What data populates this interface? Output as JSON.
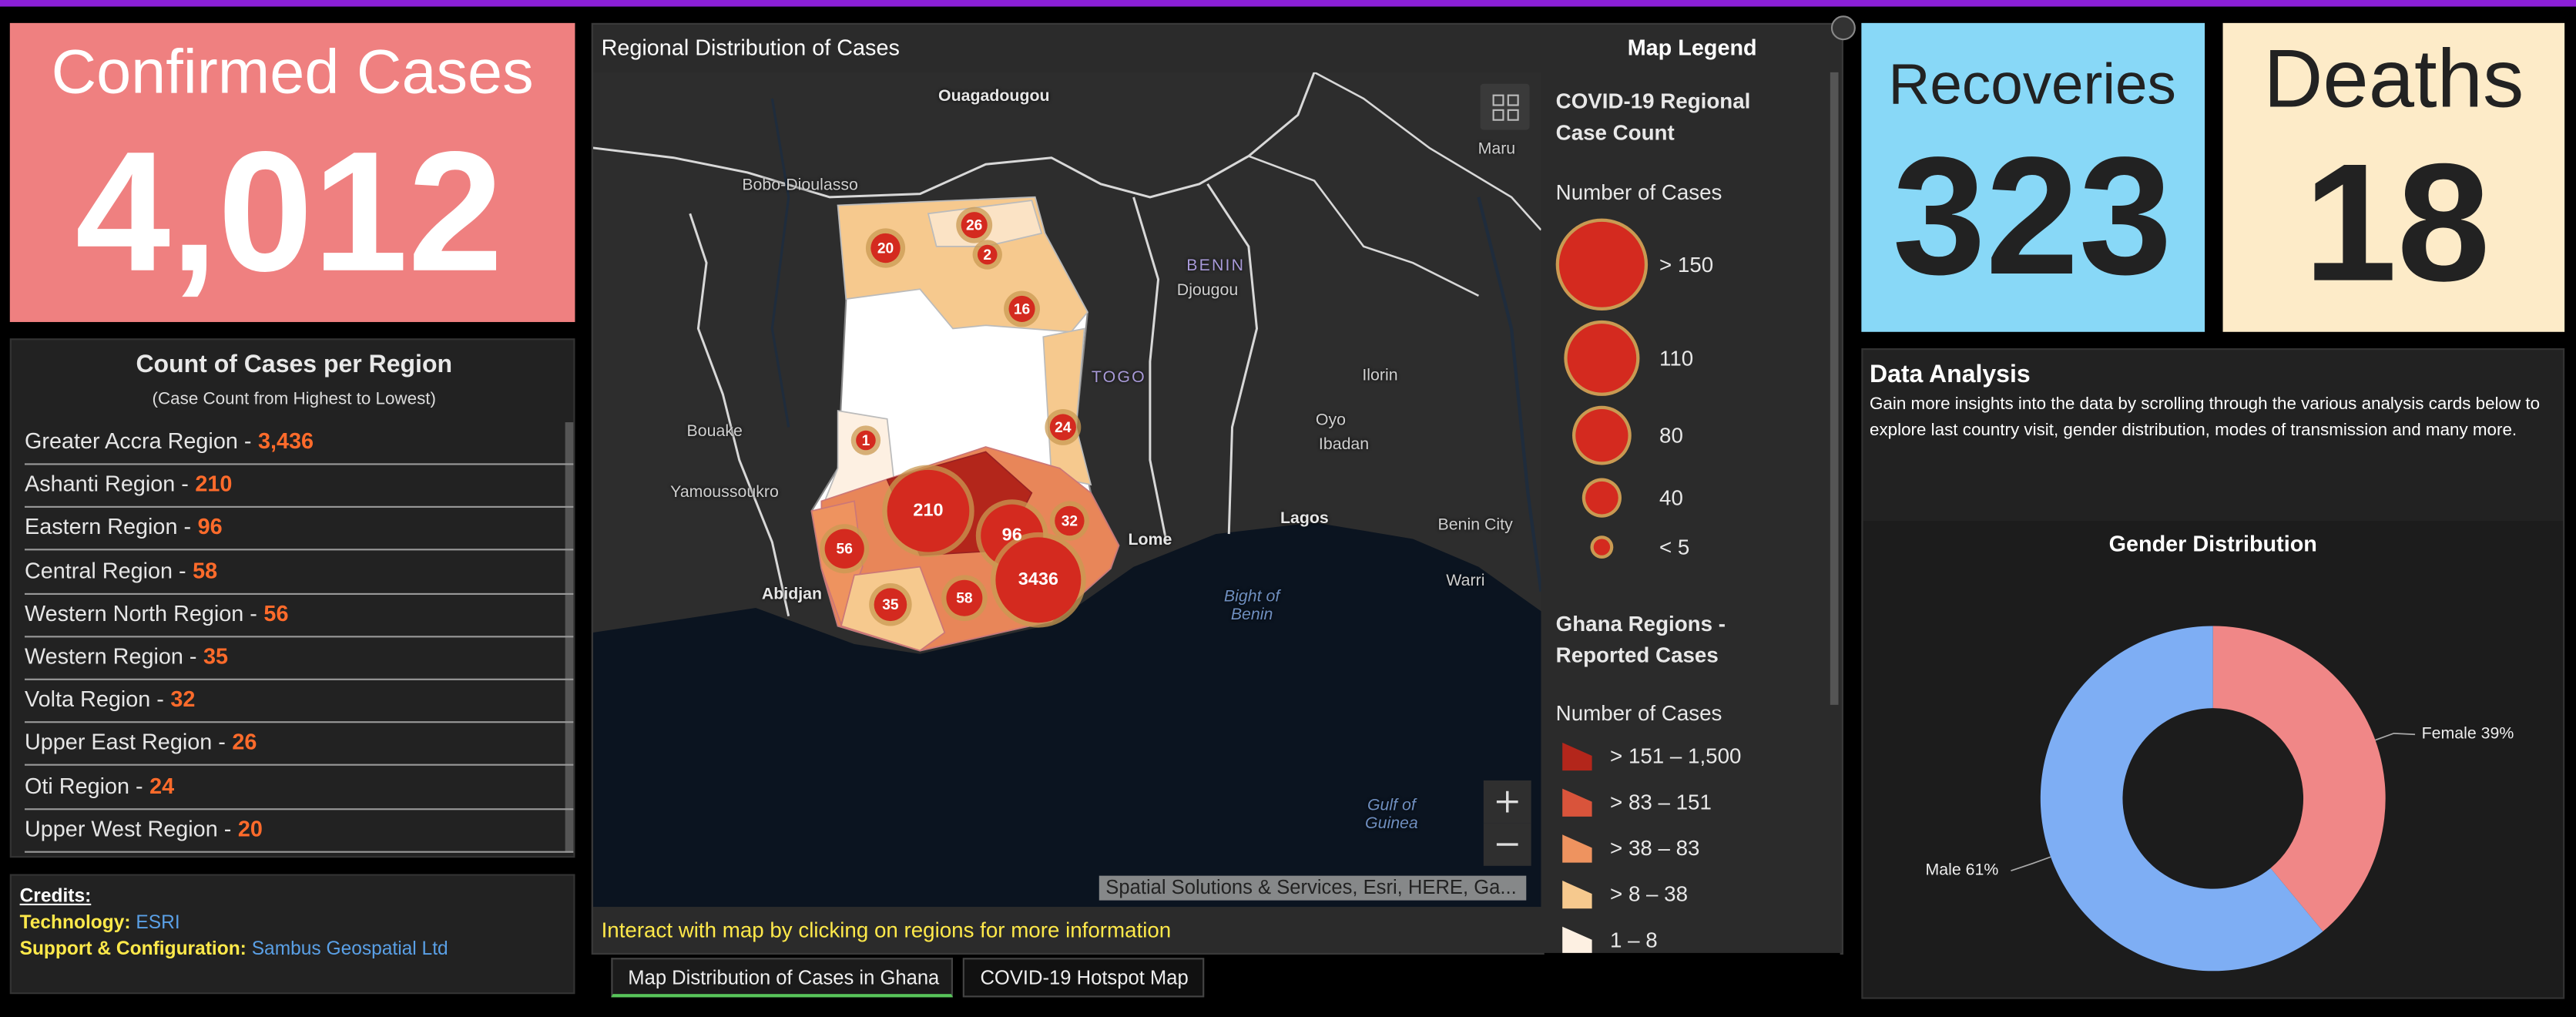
{
  "confirmed": {
    "title": "Confirmed Cases",
    "value": "4,012"
  },
  "regions_panel": {
    "title": "Count of Cases per Region",
    "subtitle": "(Case Count from Highest to Lowest)",
    "rows": [
      {
        "name": "Greater Accra Region -",
        "count": "3,436"
      },
      {
        "name": "Ashanti Region -",
        "count": "210"
      },
      {
        "name": "Eastern Region -",
        "count": "96"
      },
      {
        "name": "Central Region -",
        "count": "58"
      },
      {
        "name": "Western North Region -",
        "count": "56"
      },
      {
        "name": "Western Region -",
        "count": "35"
      },
      {
        "name": "Volta Region -",
        "count": "32"
      },
      {
        "name": "Upper East Region -",
        "count": "26"
      },
      {
        "name": "Oti Region -",
        "count": "24"
      },
      {
        "name": "Upper West Region -",
        "count": "20"
      }
    ]
  },
  "credits": {
    "title": "Credits:",
    "technology_label": "Technology:",
    "technology": "ESRI",
    "support_label": "Support & Configuration:",
    "support": "Sambus Geospatial Ltd"
  },
  "map": {
    "title": "Regional Distribution of Cases",
    "legend_title": "Map Legend",
    "place_labels": [
      "Ouagadougou",
      "Bobo-Dioulasso",
      "Maru",
      "BENIN",
      "Djougou",
      "TOGO",
      "Ilorin",
      "Oyo",
      "Ibadan",
      "Bouake",
      "Yamoussoukro",
      "Lome",
      "Lagos",
      "Benin City",
      "Abidjan",
      "Warri",
      "Bight of Benin",
      "Gulf of Guinea"
    ],
    "bubbles": [
      26,
      20,
      2,
      16,
      24,
      1,
      210,
      96,
      32,
      56,
      3436,
      58,
      35
    ],
    "attribution": "Spatial Solutions & Services, Esri, HERE, Ga...",
    "footer": "Interact with map by clicking on regions for more information",
    "legend": {
      "circle_title": "COVID-19 Regional Case Count",
      "circle_subtitle": "Number of Cases",
      "circle_labels": [
        "> 150",
        "110",
        "80",
        "40",
        "< 5"
      ],
      "region_title": "Ghana Regions - Reported Cases",
      "region_subtitle": "Number of Cases",
      "region_labels": [
        "> 151 – 1,500",
        "> 83 – 151",
        "> 38 – 83",
        "> 8 – 38",
        "1 – 8"
      ],
      "region_colors": [
        "#b3261b",
        "#d9543b",
        "#ee935f",
        "#f6c98e",
        "#fdf0e2"
      ]
    },
    "tabs": [
      "Map Distribution of Cases in Ghana",
      "COVID-19 Hotspot Map"
    ]
  },
  "recoveries": {
    "title": "Recoveries",
    "value": "323"
  },
  "deaths": {
    "title": "Deaths",
    "value": "18"
  },
  "analysis": {
    "title": "Data Analysis",
    "text": "Gain more insights into the data by scrolling through the various analysis cards below to explore last country visit, gender distribution, modes of transmission and many more."
  },
  "gender_chart": {
    "type": "pie",
    "title": "Gender Distribution",
    "values": [
      39,
      61
    ],
    "value_labels": [
      "Female 39%",
      "Male 61%"
    ],
    "colors": [
      "#f08787",
      "#7eaef4"
    ]
  }
}
